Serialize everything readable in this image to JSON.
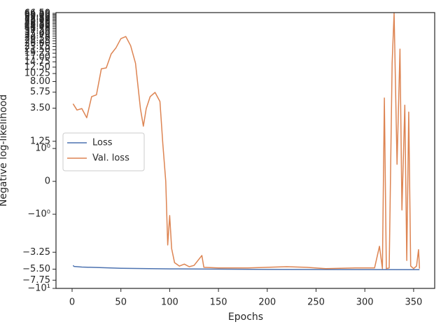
{
  "chart_data": {
    "type": "line",
    "xlabel": "Epochs",
    "ylabel": "Negative log-likelihood",
    "yscale": "symlog",
    "linthresh": 1,
    "xlim": [
      -16.5,
      371.6
    ],
    "ylim": [
      -10,
      68
    ],
    "xticks": [
      0,
      50,
      100,
      150,
      200,
      250,
      300,
      350
    ],
    "yticks": [
      {
        "value": -10,
        "label": "−10¹"
      },
      {
        "value": -7.75,
        "label": "−7.75"
      },
      {
        "value": -5.5,
        "label": "−5.50"
      },
      {
        "value": -3.25,
        "label": "−3.25"
      },
      {
        "value": -1,
        "label": "−10⁰"
      },
      0,
      {
        "value": 1,
        "label": "10⁰"
      },
      1.25,
      {
        "value": 3.5,
        "label": "3.50"
      },
      5.75,
      {
        "value": 8,
        "label": "8.00"
      },
      10.25,
      {
        "value": 12.5,
        "label": "12.50"
      },
      14.75,
      {
        "value": 17,
        "label": "17.00"
      },
      19.25,
      {
        "value": 21.5,
        "label": "21.50"
      },
      23.75,
      {
        "value": 26,
        "label": "26.00"
      },
      28.25,
      {
        "value": 30.5,
        "label": "30.50"
      },
      32.75,
      {
        "value": 35,
        "label": "35.00"
      },
      37.25,
      {
        "value": 39.5,
        "label": "39.50"
      },
      41.75,
      {
        "value": 44,
        "label": "44.00"
      },
      46.25,
      {
        "value": 48.5,
        "label": "48.50"
      },
      50.75,
      {
        "value": 53,
        "label": "53.00"
      },
      55.25,
      {
        "value": 57.5,
        "label": "57.50"
      },
      59.75,
      {
        "value": 62,
        "label": "62.00"
      },
      64.25,
      {
        "value": 66.5,
        "label": "66.50"
      }
    ],
    "legend": "center left",
    "series": [
      {
        "name": "Loss",
        "color": "#4c72b0",
        "x": [
          1,
          2,
          10,
          50,
          100,
          200,
          356
        ],
        "values": [
          -4.9,
          -5.05,
          -5.15,
          -5.35,
          -5.45,
          -5.55,
          -5.6
        ]
      },
      {
        "name": "Val. loss",
        "color": "#dd8452",
        "x": [
          1,
          5,
          10,
          15,
          20,
          25,
          30,
          35,
          40,
          45,
          50,
          55,
          60,
          65,
          70,
          73,
          76,
          80,
          85,
          90,
          93,
          96,
          98,
          100,
          102,
          105,
          110,
          115,
          120,
          125,
          133,
          135,
          150,
          180,
          220,
          240,
          260,
          290,
          310,
          315,
          318,
          320,
          322,
          325,
          328,
          330,
          333,
          336,
          338,
          341,
          343,
          345,
          347,
          350,
          353,
          355,
          356
        ],
        "values": [
          4.0,
          3.3,
          3.45,
          2.6,
          5.0,
          5.3,
          11.9,
          12.2,
          18.8,
          22.8,
          30.3,
          32.3,
          24.4,
          14.1,
          3.45,
          2.0,
          3.45,
          5.0,
          5.7,
          4.3,
          1.16,
          0,
          -2.6,
          -1.04,
          -2.9,
          -4.5,
          -5.0,
          -4.7,
          -5.1,
          -4.9,
          -3.6,
          -5.2,
          -5.3,
          -5.3,
          -5.1,
          -5.2,
          -5.4,
          -5.3,
          -5.3,
          -2.7,
          -5.4,
          4.8,
          -5.4,
          -5.3,
          14.1,
          67,
          0.52,
          21.9,
          -0.87,
          3.84,
          -4.2,
          3.1,
          -5.0,
          -5.4,
          -5.0,
          -3.0,
          -5.4
        ]
      }
    ]
  }
}
